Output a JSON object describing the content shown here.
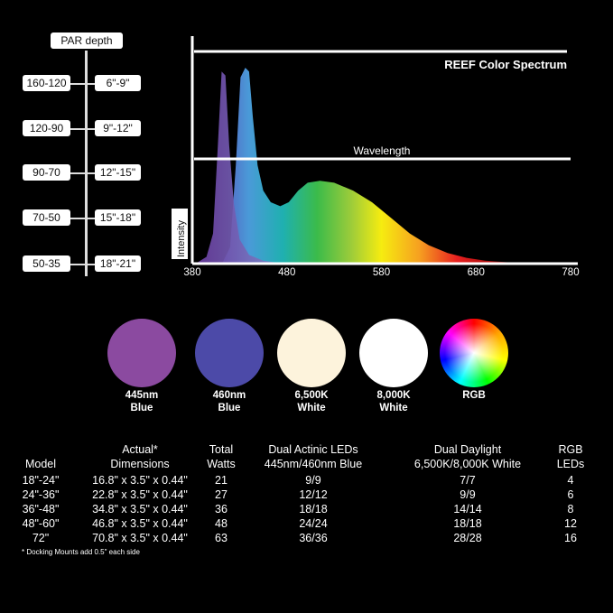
{
  "par_depth": {
    "header": "PAR  depth",
    "rows": [
      {
        "par": "160-120",
        "depth": "6\"-9\""
      },
      {
        "par": "120-90",
        "depth": "9\"-12\""
      },
      {
        "par": "90-70",
        "depth": "12\"-15\""
      },
      {
        "par": "70-50",
        "depth": "15\"-18\""
      },
      {
        "par": "50-35",
        "depth": "18\"-21\""
      }
    ]
  },
  "chart_data": {
    "type": "area",
    "title": "REEF Color Spectrum",
    "xlabel": "Wavelength",
    "ylabel": "Intensity",
    "xlim": [
      380,
      780
    ],
    "ylim": [
      0,
      1
    ],
    "x_ticks": [
      "380",
      "480",
      "580",
      "680",
      "780"
    ],
    "grid": false,
    "series": [
      {
        "color": "#6a4bb0",
        "points": [
          [
            385,
            0
          ],
          [
            395,
            0.03
          ],
          [
            402,
            0.15
          ],
          [
            407,
            0.6
          ],
          [
            411,
            0.98
          ],
          [
            415,
            0.96
          ],
          [
            419,
            0.6
          ],
          [
            424,
            0.3
          ],
          [
            430,
            0.12
          ],
          [
            440,
            0.04
          ],
          [
            455,
            0.01
          ],
          [
            470,
            0
          ]
        ]
      },
      {
        "color": "#4aa0d8",
        "points": [
          [
            412,
            0
          ],
          [
            420,
            0.08
          ],
          [
            426,
            0.5
          ],
          [
            431,
            0.95
          ],
          [
            436,
            1.0
          ],
          [
            440,
            0.98
          ],
          [
            444,
            0.75
          ],
          [
            449,
            0.5
          ],
          [
            455,
            0.37
          ],
          [
            463,
            0.31
          ],
          [
            473,
            0.29
          ],
          [
            482,
            0.31
          ],
          [
            492,
            0.37
          ],
          [
            502,
            0.41
          ],
          [
            515,
            0.42
          ],
          [
            530,
            0.41
          ],
          [
            550,
            0.37
          ],
          [
            570,
            0.31
          ],
          [
            590,
            0.23
          ],
          [
            610,
            0.15
          ],
          [
            630,
            0.09
          ],
          [
            650,
            0.05
          ],
          [
            670,
            0.025
          ],
          [
            690,
            0.01
          ],
          [
            720,
            0
          ]
        ]
      }
    ]
  },
  "led_colors": [
    {
      "label1": "445nm",
      "label2": "Blue",
      "color": "#8b4aa0"
    },
    {
      "label1": "460nm",
      "label2": "Blue",
      "color": "#4c4aa8"
    },
    {
      "label1": "6,500K",
      "label2": "White",
      "color": "#fdf3dc"
    },
    {
      "label1": "8,000K",
      "label2": "White",
      "color": "#ffffff"
    },
    {
      "label1": "RGB",
      "label2": "",
      "color": "rainbow"
    }
  ],
  "table": {
    "headers": [
      [
        "",
        "Model"
      ],
      [
        "Actual*",
        "Dimensions"
      ],
      [
        "Total",
        "Watts"
      ],
      [
        "Dual Actinic LEDs",
        "445nm/460nm Blue"
      ],
      [
        "Dual Daylight",
        "6,500K/8,000K White"
      ],
      [
        "RGB",
        "LEDs"
      ]
    ],
    "rows": [
      [
        "18\"-24\"",
        "16.8\" x 3.5\" x 0.44\"",
        "21",
        "9/9",
        "7/7",
        "4"
      ],
      [
        "24\"-36\"",
        "22.8\" x 3.5\" x 0.44\"",
        "27",
        "12/12",
        "9/9",
        "6"
      ],
      [
        "36\"-48\"",
        "34.8\" x 3.5\" x 0.44\"",
        "36",
        "18/18",
        "14/14",
        "8"
      ],
      [
        "48\"-60\"",
        "46.8\" x 3.5\" x 0.44\"",
        "48",
        "24/24",
        "18/18",
        "12"
      ],
      [
        "72\"",
        "70.8\" x 3.5\" x 0.44\"",
        "63",
        "36/36",
        "28/28",
        "16"
      ]
    ],
    "footnote": "* Docking Mounts add 0.5\" each side"
  }
}
